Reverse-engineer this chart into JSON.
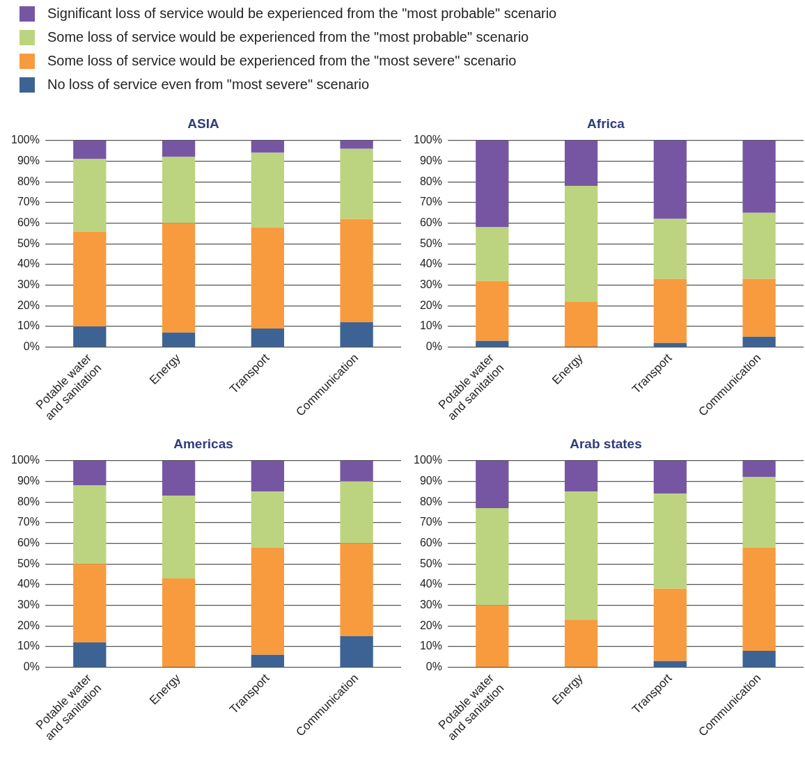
{
  "chart_data": [
    {
      "type": "bar",
      "stacked": true,
      "title": "ASIA",
      "categories": [
        "Potable water\nand sanitation",
        "Energy",
        "Transport",
        "Communication"
      ],
      "ylim": [
        0,
        100
      ],
      "yticks": [
        {
          "value": 0,
          "label": "0%"
        },
        {
          "value": 10,
          "label": "10%"
        },
        {
          "value": 20,
          "label": "20%"
        },
        {
          "value": 30,
          "label": "30%"
        },
        {
          "value": 40,
          "label": "40%"
        },
        {
          "value": 50,
          "label": "50%"
        },
        {
          "value": 60,
          "label": "60%"
        },
        {
          "value": 70,
          "label": "70%"
        },
        {
          "value": 80,
          "label": "80%"
        },
        {
          "value": 90,
          "label": "90%"
        },
        {
          "value": 100,
          "label": "100%"
        }
      ],
      "grid": "y",
      "legend": "top",
      "series": [
        {
          "name": "No loss of service even from \"most severe\" scenario",
          "color": "#3d6394",
          "values": [
            10,
            7,
            9,
            12
          ]
        },
        {
          "name": "Some loss of service would be experienced from the \"most severe\" scenario",
          "color": "#f79b3e",
          "values": [
            46,
            53,
            49,
            50
          ]
        },
        {
          "name": "Some loss of service would be experienced from the \"most probable\" scenario",
          "color": "#bcd47f",
          "values": [
            35,
            32,
            36,
            34
          ]
        },
        {
          "name": "Significant loss of service would be experienced from the \"most probable\" scenario",
          "color": "#7656a3",
          "values": [
            9,
            8,
            6,
            4
          ]
        }
      ]
    },
    {
      "type": "bar",
      "stacked": true,
      "title": "Africa",
      "categories": [
        "Potable water\nand sanitation",
        "Energy",
        "Transport",
        "Communication"
      ],
      "ylim": [
        0,
        100
      ],
      "yticks": [
        {
          "value": 0,
          "label": "0%"
        },
        {
          "value": 10,
          "label": "10%"
        },
        {
          "value": 20,
          "label": "20%"
        },
        {
          "value": 30,
          "label": "30%"
        },
        {
          "value": 40,
          "label": "40%"
        },
        {
          "value": 50,
          "label": "50%"
        },
        {
          "value": 60,
          "label": "60%"
        },
        {
          "value": 70,
          "label": "70%"
        },
        {
          "value": 80,
          "label": "80%"
        },
        {
          "value": 90,
          "label": "90%"
        },
        {
          "value": 100,
          "label": "100%"
        }
      ],
      "grid": "y",
      "series": [
        {
          "color": "#3d6394",
          "values": [
            3,
            0,
            2,
            5
          ]
        },
        {
          "color": "#f79b3e",
          "values": [
            29,
            22,
            31,
            28
          ]
        },
        {
          "color": "#bcd47f",
          "values": [
            26,
            56,
            29,
            32
          ]
        },
        {
          "color": "#7656a3",
          "values": [
            42,
            22,
            38,
            35
          ]
        }
      ]
    },
    {
      "type": "bar",
      "stacked": true,
      "title": "Americas",
      "categories": [
        "Potable water\nand sanitation",
        "Energy",
        "Transport",
        "Communication"
      ],
      "ylim": [
        0,
        100
      ],
      "yticks": [
        {
          "value": 0,
          "label": "0%"
        },
        {
          "value": 10,
          "label": "10%"
        },
        {
          "value": 20,
          "label": "20%"
        },
        {
          "value": 30,
          "label": "30%"
        },
        {
          "value": 40,
          "label": "40%"
        },
        {
          "value": 50,
          "label": "50%"
        },
        {
          "value": 60,
          "label": "60%"
        },
        {
          "value": 70,
          "label": "70%"
        },
        {
          "value": 80,
          "label": "80%"
        },
        {
          "value": 90,
          "label": "90%"
        },
        {
          "value": 100,
          "label": "100%"
        }
      ],
      "grid": "y",
      "series": [
        {
          "color": "#3d6394",
          "values": [
            12,
            0,
            6,
            15
          ]
        },
        {
          "color": "#f79b3e",
          "values": [
            38,
            43,
            52,
            45
          ]
        },
        {
          "color": "#bcd47f",
          "values": [
            38,
            40,
            27,
            30
          ]
        },
        {
          "color": "#7656a3",
          "values": [
            12,
            17,
            15,
            10
          ]
        }
      ]
    },
    {
      "type": "bar",
      "stacked": true,
      "title": "Arab states",
      "categories": [
        "Potable water\nand sanitation",
        "Energy",
        "Transport",
        "Communication"
      ],
      "ylim": [
        0,
        100
      ],
      "yticks": [
        {
          "value": 0,
          "label": "0%"
        },
        {
          "value": 10,
          "label": "10%"
        },
        {
          "value": 20,
          "label": "20%"
        },
        {
          "value": 30,
          "label": "30%"
        },
        {
          "value": 40,
          "label": "40%"
        },
        {
          "value": 50,
          "label": "50%"
        },
        {
          "value": 60,
          "label": "60%"
        },
        {
          "value": 70,
          "label": "70%"
        },
        {
          "value": 80,
          "label": "80%"
        },
        {
          "value": 90,
          "label": "90%"
        },
        {
          "value": 100,
          "label": "100%"
        }
      ],
      "grid": "y",
      "series": [
        {
          "color": "#3d6394",
          "values": [
            0,
            0,
            3,
            8
          ]
        },
        {
          "color": "#f79b3e",
          "values": [
            30,
            23,
            35,
            50
          ]
        },
        {
          "color": "#bcd47f",
          "values": [
            47,
            62,
            46,
            34
          ]
        },
        {
          "color": "#7656a3",
          "values": [
            23,
            15,
            16,
            8
          ]
        }
      ]
    }
  ]
}
